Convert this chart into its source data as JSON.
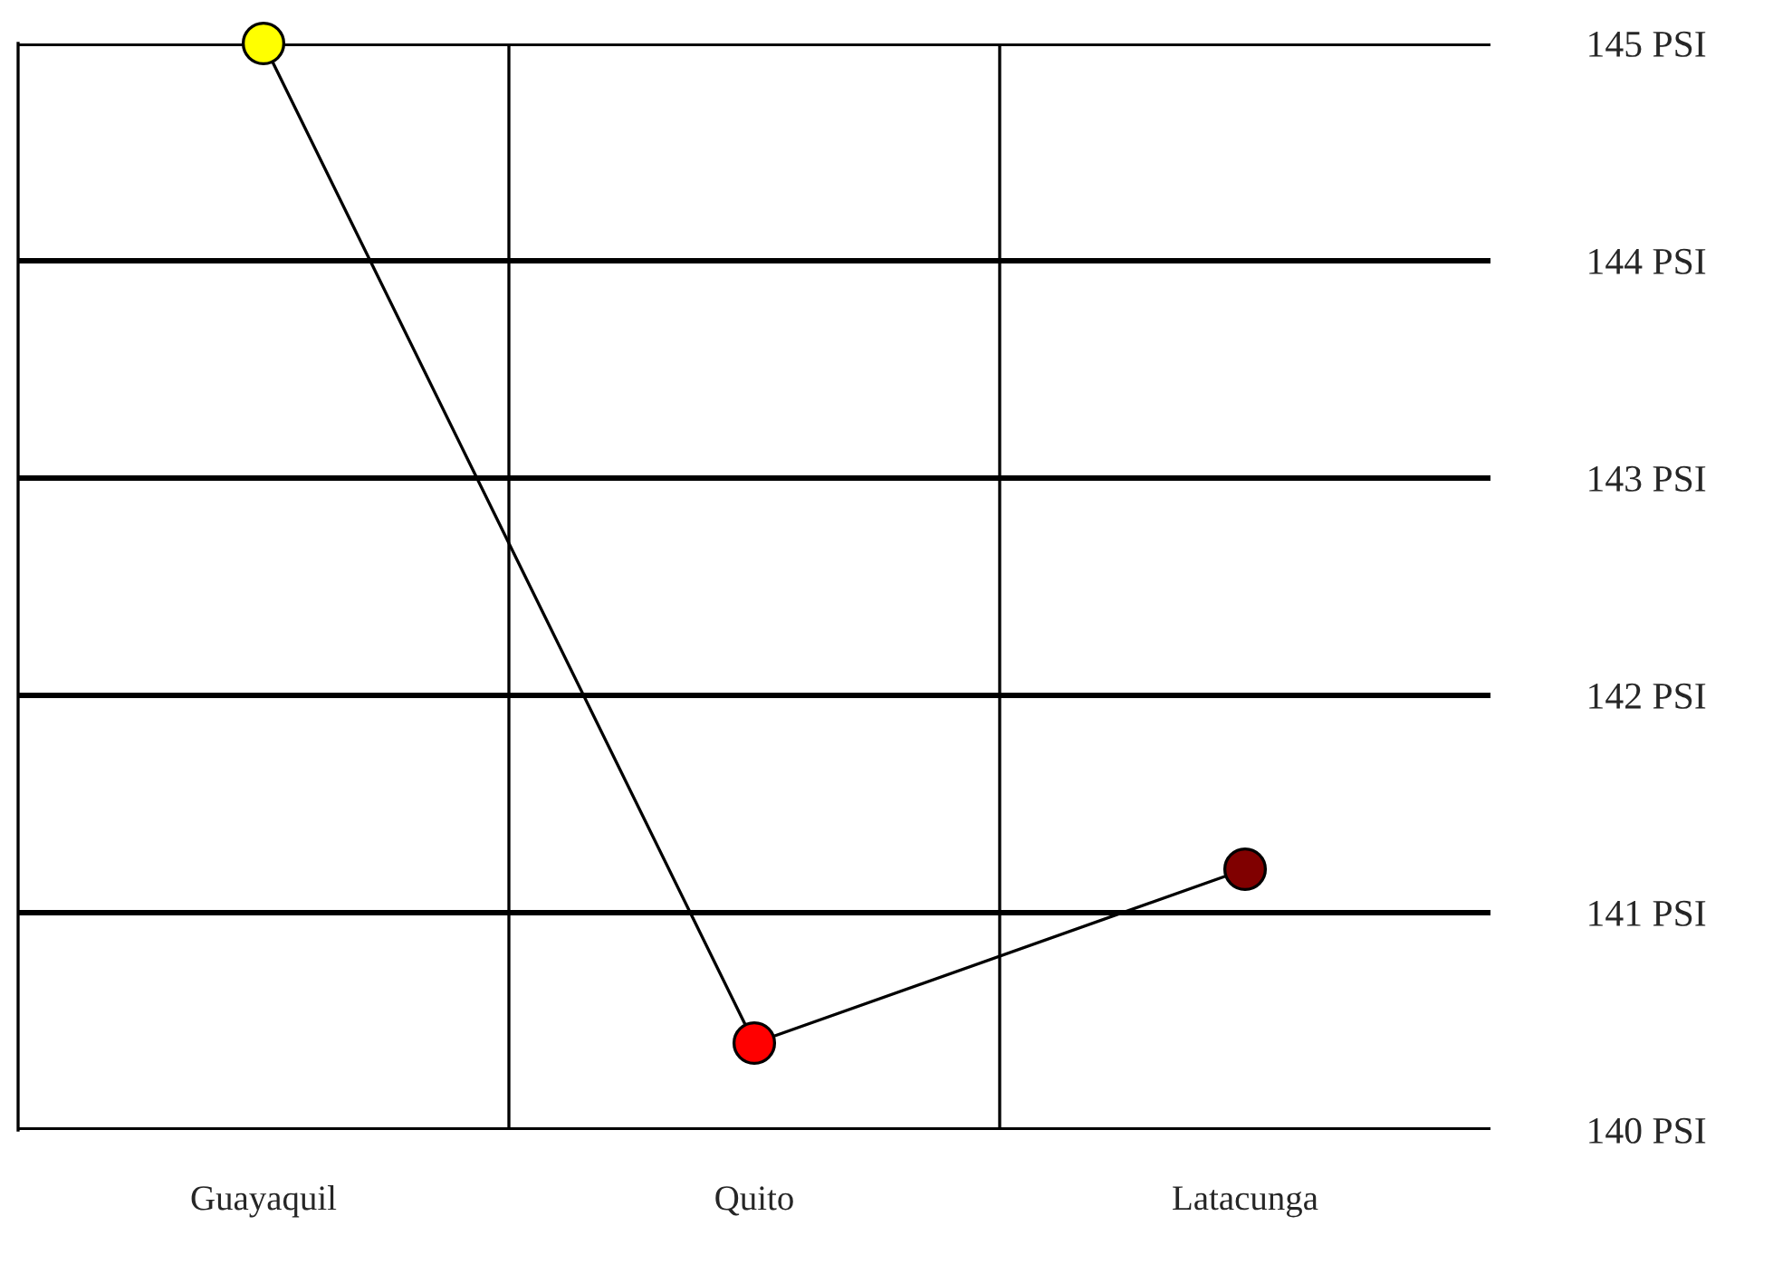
{
  "chart_data": {
    "type": "line",
    "categories": [
      "Guayaquil",
      "Quito",
      "Latacunga"
    ],
    "series": [
      {
        "color": "#000000",
        "colors": [
          "#ffff00",
          "#ff0000",
          "#800000"
        ],
        "values": [
          145,
          140.4,
          141.2
        ]
      }
    ],
    "ylim": [
      140,
      145
    ],
    "yticks": [
      {
        "value": 140,
        "label": "140 PSI"
      },
      {
        "value": 141,
        "label": "141 PSI"
      },
      {
        "value": 142,
        "label": "142 PSI"
      },
      {
        "value": 143,
        "label": "143 PSI"
      },
      {
        "value": 144,
        "label": "144 PSI"
      },
      {
        "value": 145,
        "label": "145 PSI"
      }
    ],
    "grid": true,
    "marker": "circle",
    "line_style": "solid"
  }
}
